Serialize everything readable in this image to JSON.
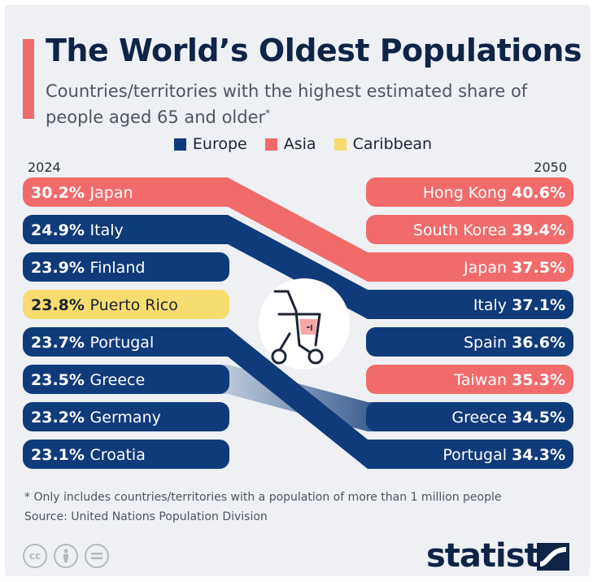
{
  "title": "The World’s Oldest Populations",
  "subtitle": "Countries/territories with the highest estimated share of people aged 65 and older",
  "subtitle_mark": "*",
  "legend": [
    {
      "label": "Europe",
      "color": "#0f3b7a"
    },
    {
      "label": "Asia",
      "color": "#f26b6b"
    },
    {
      "label": "Caribbean",
      "color": "#f7dc6f"
    }
  ],
  "chart_data": {
    "type": "slope",
    "unit": "%",
    "left_year": "2024",
    "right_year": "2050",
    "left": [
      {
        "country": "Japan",
        "value": 30.2,
        "region": "Asia"
      },
      {
        "country": "Italy",
        "value": 24.9,
        "region": "Europe"
      },
      {
        "country": "Finland",
        "value": 23.9,
        "region": "Europe"
      },
      {
        "country": "Puerto Rico",
        "value": 23.8,
        "region": "Caribbean"
      },
      {
        "country": "Portugal",
        "value": 23.7,
        "region": "Europe"
      },
      {
        "country": "Greece",
        "value": 23.5,
        "region": "Europe"
      },
      {
        "country": "Germany",
        "value": 23.2,
        "region": "Europe"
      },
      {
        "country": "Croatia",
        "value": 23.1,
        "region": "Europe"
      }
    ],
    "right": [
      {
        "country": "Hong Kong",
        "value": 40.6,
        "region": "Asia"
      },
      {
        "country": "South Korea",
        "value": 39.4,
        "region": "Asia"
      },
      {
        "country": "Japan",
        "value": 37.5,
        "region": "Asia"
      },
      {
        "country": "Italy",
        "value": 37.1,
        "region": "Europe"
      },
      {
        "country": "Spain",
        "value": 36.6,
        "region": "Europe"
      },
      {
        "country": "Taiwan",
        "value": 35.3,
        "region": "Asia"
      },
      {
        "country": "Greece",
        "value": 34.5,
        "region": "Europe"
      },
      {
        "country": "Portugal",
        "value": 34.3,
        "region": "Europe"
      }
    ],
    "connections": [
      "Japan",
      "Italy",
      "Portugal",
      "Greece"
    ]
  },
  "footnote": "* Only includes countries/territories with a population of more than 1 million people",
  "source": "Source: United Nations Population Division",
  "brand": "statista",
  "license_icons": [
    "cc",
    "person",
    "equals"
  ],
  "colors": {
    "Europe": "#0f3b7a",
    "Asia": "#f26b6b",
    "Caribbean": "#f7dc6f"
  }
}
